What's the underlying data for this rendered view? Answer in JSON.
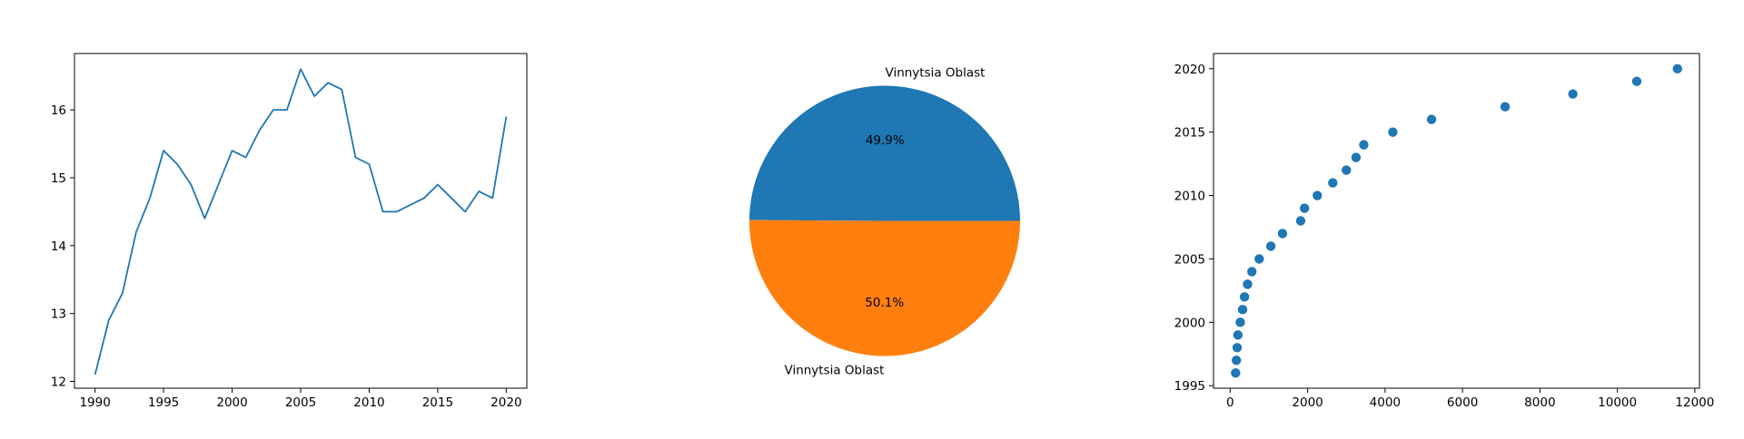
{
  "chart_data": [
    {
      "type": "line",
      "x": [
        1990,
        1991,
        1992,
        1993,
        1994,
        1995,
        1996,
        1997,
        1998,
        1999,
        2000,
        2001,
        2002,
        2003,
        2004,
        2005,
        2006,
        2007,
        2008,
        2009,
        2010,
        2011,
        2012,
        2013,
        2014,
        2015,
        2016,
        2017,
        2018,
        2019,
        2020
      ],
      "series": [
        {
          "values": [
            12.1,
            12.9,
            13.3,
            14.2,
            14.7,
            15.4,
            15.2,
            14.9,
            14.4,
            14.9,
            15.4,
            15.3,
            15.7,
            16.0,
            16.0,
            16.6,
            16.2,
            16.4,
            16.3,
            15.3,
            15.2,
            14.5,
            14.5,
            14.6,
            14.7,
            14.9,
            14.7,
            14.5,
            14.8,
            14.7,
            15.9
          ],
          "color": "#1f77b4"
        }
      ],
      "xlim": [
        1988.5,
        2021.5
      ],
      "ylim": [
        11.9,
        16.83
      ],
      "xticks": [
        1990,
        1995,
        2000,
        2005,
        2010,
        2015,
        2020
      ],
      "yticks": [
        12,
        13,
        14,
        15,
        16
      ],
      "grid": false
    },
    {
      "type": "pie",
      "labels": [
        "Vinnytsia Oblast",
        "Vinnytsia Oblast"
      ],
      "values": [
        49.9,
        50.1
      ],
      "autopct": [
        "49.9%",
        "50.1%"
      ],
      "colors": [
        "#1f77b4",
        "#ff7f0e"
      ]
    },
    {
      "type": "scatter",
      "x": [
        140,
        160,
        180,
        200,
        260,
        320,
        370,
        450,
        560,
        750,
        1050,
        1350,
        1820,
        1920,
        2250,
        2650,
        3000,
        3250,
        3450,
        4200,
        5200,
        7100,
        8850,
        10500,
        11550
      ],
      "y": [
        1996,
        1997,
        1998,
        1999,
        2000,
        2001,
        2002,
        2003,
        2004,
        2005,
        2006,
        2007,
        2008,
        2009,
        2010,
        2011,
        2012,
        2013,
        2014,
        2015,
        2016,
        2017,
        2018,
        2019,
        2020
      ],
      "color": "#1f77b4",
      "xlim": [
        -430,
        12120
      ],
      "ylim": [
        1994.8,
        2021.2
      ],
      "xticks": [
        0,
        2000,
        4000,
        6000,
        8000,
        10000,
        12000
      ],
      "yticks": [
        1995,
        2000,
        2005,
        2010,
        2015,
        2020
      ],
      "grid": false
    }
  ]
}
